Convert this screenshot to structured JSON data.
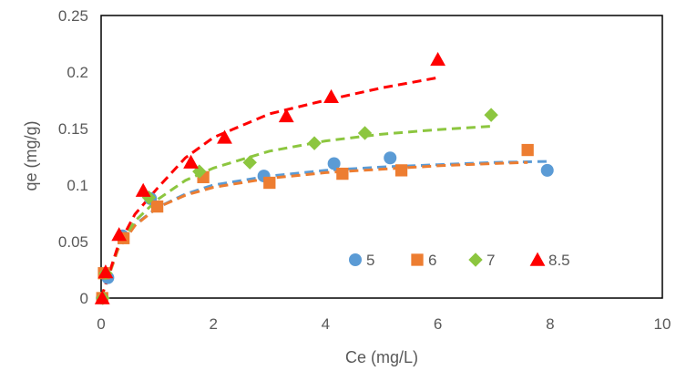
{
  "chart_data": {
    "type": "scatter",
    "title": "",
    "xlabel": "Ce (mg/L)",
    "ylabel": "qe (mg/g)",
    "xlim": [
      0,
      10
    ],
    "ylim": [
      0,
      0.25
    ],
    "x_ticks": [
      0,
      2,
      4,
      6,
      8,
      10
    ],
    "y_ticks": [
      0,
      0.05,
      0.1,
      0.15,
      0.2,
      0.25
    ],
    "x_tick_labels": [
      "0",
      "2",
      "4",
      "6",
      "8",
      "10"
    ],
    "y_tick_labels": [
      "0",
      "0.05",
      "0.1",
      "0.15",
      "0.2",
      "0.25"
    ],
    "grid": false,
    "legend_position": "lower-right",
    "series": [
      {
        "name": "5",
        "marker": "circle",
        "color": "#5B9BD5",
        "points": [
          [
            0.02,
            0.0
          ],
          [
            0.12,
            0.018
          ],
          [
            0.38,
            0.055
          ],
          [
            0.88,
            0.088
          ],
          [
            2.9,
            0.108
          ],
          [
            4.15,
            0.119
          ],
          [
            5.15,
            0.124
          ],
          [
            7.95,
            0.113
          ]
        ],
        "fit": [
          [
            0.0,
            0.0
          ],
          [
            0.3,
            0.044
          ],
          [
            0.6,
            0.065
          ],
          [
            1.0,
            0.08
          ],
          [
            1.5,
            0.092
          ],
          [
            2.0,
            0.1
          ],
          [
            3.0,
            0.108
          ],
          [
            4.0,
            0.113
          ],
          [
            5.0,
            0.116
          ],
          [
            6.0,
            0.118
          ],
          [
            7.0,
            0.12
          ],
          [
            8.0,
            0.121
          ]
        ]
      },
      {
        "name": "6",
        "marker": "square",
        "color": "#ED7D31",
        "points": [
          [
            0.02,
            0.0
          ],
          [
            0.05,
            0.022
          ],
          [
            0.4,
            0.053
          ],
          [
            1.0,
            0.081
          ],
          [
            1.82,
            0.107
          ],
          [
            3.0,
            0.102
          ],
          [
            4.3,
            0.11
          ],
          [
            5.35,
            0.113
          ],
          [
            7.6,
            0.131
          ]
        ],
        "fit": [
          [
            0.0,
            0.0
          ],
          [
            0.3,
            0.043
          ],
          [
            0.6,
            0.064
          ],
          [
            1.0,
            0.08
          ],
          [
            1.5,
            0.091
          ],
          [
            2.0,
            0.098
          ],
          [
            3.0,
            0.106
          ],
          [
            4.0,
            0.111
          ],
          [
            5.0,
            0.114
          ],
          [
            6.0,
            0.117
          ],
          [
            7.0,
            0.119
          ],
          [
            7.6,
            0.12
          ]
        ]
      },
      {
        "name": "7",
        "marker": "diamond",
        "color": "#8CC63F",
        "points": [
          [
            0.03,
            0.0
          ],
          [
            0.08,
            0.022
          ],
          [
            0.85,
            0.089
          ],
          [
            1.75,
            0.112
          ],
          [
            2.65,
            0.12
          ],
          [
            3.8,
            0.137
          ],
          [
            4.7,
            0.146
          ],
          [
            6.95,
            0.162
          ]
        ],
        "fit": [
          [
            0.0,
            0.0
          ],
          [
            0.3,
            0.045
          ],
          [
            0.6,
            0.068
          ],
          [
            1.0,
            0.087
          ],
          [
            1.5,
            0.104
          ],
          [
            2.0,
            0.115
          ],
          [
            3.0,
            0.13
          ],
          [
            4.0,
            0.139
          ],
          [
            5.0,
            0.145
          ],
          [
            6.0,
            0.149
          ],
          [
            6.95,
            0.152
          ]
        ]
      },
      {
        "name": "8.5",
        "marker": "triangle",
        "color": "#FF0000",
        "points": [
          [
            0.02,
            0.0
          ],
          [
            0.08,
            0.023
          ],
          [
            0.32,
            0.056
          ],
          [
            0.75,
            0.095
          ],
          [
            1.6,
            0.12
          ],
          [
            2.2,
            0.142
          ],
          [
            3.3,
            0.161
          ],
          [
            4.1,
            0.178
          ],
          [
            6.0,
            0.211
          ]
        ],
        "fit": [
          [
            0.0,
            0.0
          ],
          [
            0.3,
            0.046
          ],
          [
            0.6,
            0.074
          ],
          [
            1.0,
            0.097
          ],
          [
            1.5,
            0.124
          ],
          [
            2.0,
            0.142
          ],
          [
            3.0,
            0.163
          ],
          [
            4.0,
            0.175
          ],
          [
            5.0,
            0.186
          ],
          [
            6.0,
            0.195
          ]
        ]
      }
    ]
  }
}
